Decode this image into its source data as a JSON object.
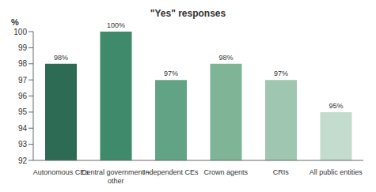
{
  "chart_data": {
    "type": "bar",
    "title": "\"Yes\" responses",
    "y_label": "%",
    "categories": [
      "Autonomous CEs",
      "Central government – other",
      "Independent CEs",
      "Crown agents",
      "CRIs",
      "All public entities"
    ],
    "values": [
      98,
      100,
      97,
      98,
      97,
      95
    ],
    "value_labels": [
      "98%",
      "100%",
      "97%",
      "98%",
      "97%",
      "95%"
    ],
    "colors": [
      "#2e6b55",
      "#3f8a6b",
      "#62a386",
      "#80b497",
      "#9fc6b0",
      "#c4dccd"
    ],
    "ylim": [
      92,
      100
    ],
    "yticks": [
      92,
      93,
      94,
      95,
      96,
      97,
      98,
      99,
      100
    ],
    "grid": false,
    "data_labels": true
  }
}
